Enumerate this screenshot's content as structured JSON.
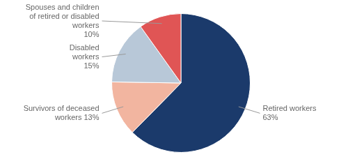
{
  "chart_data": {
    "type": "pie",
    "values": [
      63,
      13,
      15,
      10
    ],
    "colors": [
      "#1b3a6b",
      "#f2b5a0",
      "#b8c8d8",
      "#e05555"
    ],
    "annotations": [
      "Retired workers\n63%",
      "Survivors of deceased\nworkers 13%",
      "Disabled\nworkers\n15%",
      "Spouses and children\nof retired or disabled\nworkers\n10%"
    ]
  }
}
